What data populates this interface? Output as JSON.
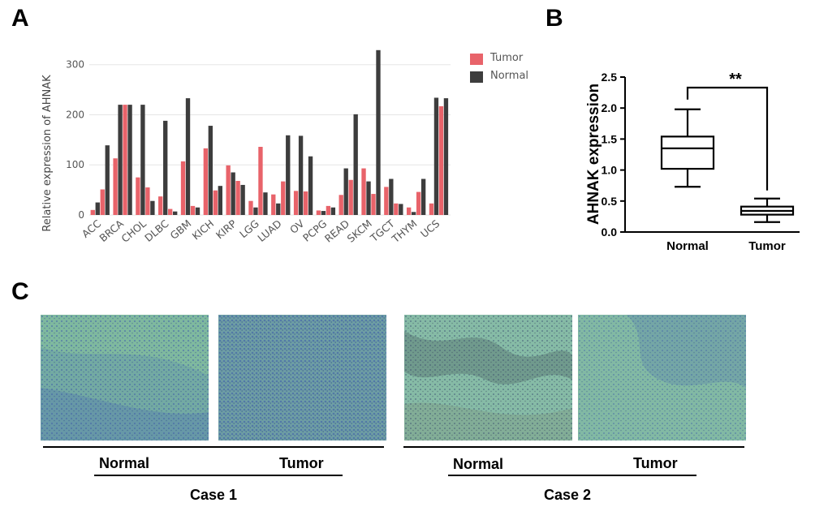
{
  "panels": {
    "a": "A",
    "b": "B",
    "c": "C"
  },
  "colors": {
    "tumor": "#e8636a",
    "normal": "#3d3d3d",
    "tissue_bg": "#7ab59c",
    "stain": "#3f5fa8"
  },
  "chart_data": [
    {
      "type": "bar",
      "title": "",
      "xlabel": "",
      "ylabel": "Relative expression of AHNAK",
      "ylim": [
        0,
        340
      ],
      "yticks": [
        0,
        100,
        200,
        300
      ],
      "grid": true,
      "legend_position": "top-right",
      "categories": [
        "ACC",
        "BRCA",
        "CHOL",
        "DLBC",
        "GBM",
        "KICH",
        "KIRP",
        "LGG",
        "LUAD",
        "OV",
        "PCPG",
        "READ",
        "SKCM",
        "TGCT",
        "THYM",
        "UCS"
      ],
      "series": [
        {
          "name": "Tumor",
          "values": [
            10,
            113,
            75,
            37,
            107,
            133,
            99,
            28,
            41,
            48,
            9,
            40,
            93,
            56,
            15,
            23
          ]
        },
        {
          "name": "Normal",
          "values": [
            25,
            220,
            220,
            188,
            233,
            178,
            85,
            15,
            23,
            158,
            8,
            93,
            67,
            72,
            6,
            234
          ]
        },
        {
          "name": "Tumor",
          "values": [
            51,
            220,
            55,
            12,
            18,
            49,
            68,
            136,
            67,
            47,
            18,
            70,
            42,
            23,
            46,
            217
          ]
        },
        {
          "name": "Normal",
          "values": [
            139,
            220,
            28,
            7,
            15,
            58,
            60,
            45,
            159,
            117,
            15,
            201,
            329,
            22,
            72,
            233
          ]
        }
      ]
    },
    {
      "type": "boxplot",
      "ylabel": "AHNAK expression",
      "ylim": [
        0,
        2.5
      ],
      "yticks": [
        "0.0",
        "0.5",
        "1.0",
        "1.5",
        "2.0",
        "2.5"
      ],
      "categories": [
        "Normal",
        "Tumor"
      ],
      "boxes": [
        {
          "name": "Normal",
          "min": 0.73,
          "q1": 1.02,
          "median": 1.35,
          "q3": 1.54,
          "max": 1.98
        },
        {
          "name": "Tumor",
          "min": 0.16,
          "q1": 0.28,
          "median": 0.34,
          "q3": 0.41,
          "max": 0.54
        }
      ],
      "significance": "**"
    }
  ],
  "legend": [
    {
      "label": "Tumor",
      "key": "tumor"
    },
    {
      "label": "Normal",
      "key": "normal"
    }
  ],
  "histology": {
    "case1": {
      "label": "Case 1",
      "normal": "Normal",
      "tumor": "Tumor"
    },
    "case2": {
      "label": "Case 2",
      "normal": "Normal",
      "tumor": "Tumor"
    }
  }
}
